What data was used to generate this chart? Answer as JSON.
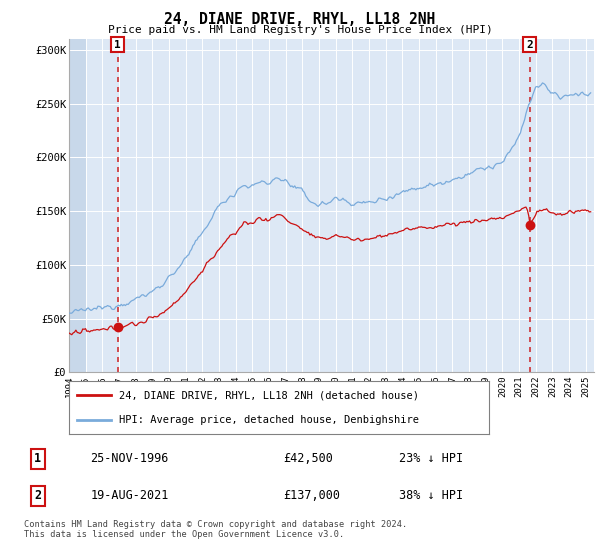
{
  "title": "24, DIANE DRIVE, RHYL, LL18 2NH",
  "subtitle": "Price paid vs. HM Land Registry's House Price Index (HPI)",
  "ylim": [
    0,
    310000
  ],
  "xlim_start": 1994.0,
  "xlim_end": 2025.5,
  "hpi_color": "#7aabdb",
  "price_color": "#cc1111",
  "sale1_year": 1996.91,
  "sale1_price": 42500,
  "sale2_year": 2021.63,
  "sale2_price": 137000,
  "legend_label1": "24, DIANE DRIVE, RHYL, LL18 2NH (detached house)",
  "legend_label2": "HPI: Average price, detached house, Denbighshire",
  "table_row1": [
    "1",
    "25-NOV-1996",
    "£42,500",
    "23% ↓ HPI"
  ],
  "table_row2": [
    "2",
    "19-AUG-2021",
    "£137,000",
    "38% ↓ HPI"
  ],
  "footnote": "Contains HM Land Registry data © Crown copyright and database right 2024.\nThis data is licensed under the Open Government Licence v3.0.",
  "background_color": "#ffffff",
  "plot_bg_color": "#dde8f5",
  "hatch_bg_color": "#c8d8ea"
}
